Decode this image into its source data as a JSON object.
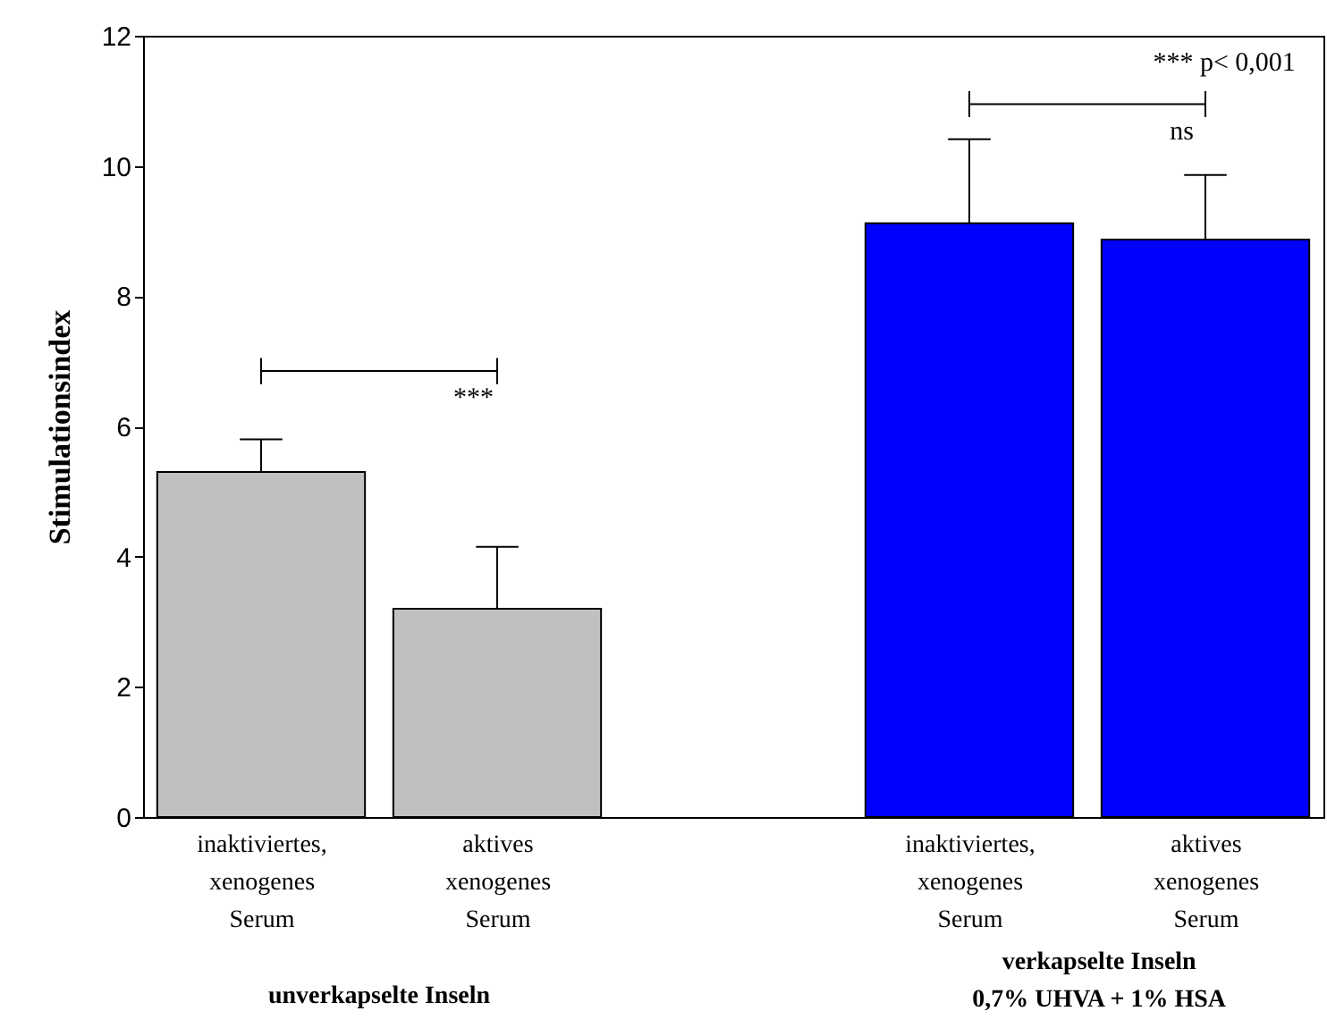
{
  "chart_data": {
    "type": "bar",
    "ylabel": "Stimulationsindex",
    "categories": [
      "inaktiviertes, xenogenes Serum",
      "aktives xenogenes Serum",
      null,
      "inaktiviertes, xenogenes Serum",
      "aktives xenogenes Serum"
    ],
    "values": [
      5.3,
      3.2,
      null,
      9.12,
      8.87
    ],
    "colors": [
      "#c0c0c0",
      "#c0c0c0",
      null,
      "#0000ff",
      "#0000ff"
    ],
    "errors": [
      [
        5.3,
        5.8
      ],
      [
        3.2,
        4.15
      ],
      null,
      [
        9.12,
        10.41
      ],
      [
        8.87,
        9.86
      ]
    ],
    "ylim": [
      0,
      12
    ],
    "yticks": [
      0,
      2,
      4,
      6,
      8,
      10,
      12
    ],
    "grid": false,
    "annotations": [
      "***",
      "ns",
      "*** p< 0,001",
      "unverkapselte Inseln",
      "verkapselte Inseln\n0,7% UHVA + 1% HSA"
    ]
  }
}
